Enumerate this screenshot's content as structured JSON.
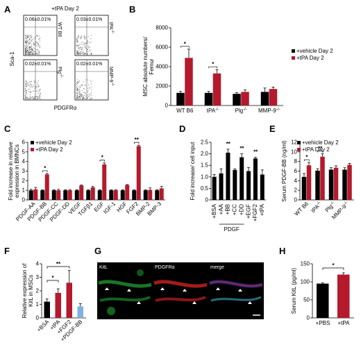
{
  "panel_labels": [
    "A",
    "B",
    "C",
    "D",
    "E",
    "F",
    "G",
    "H"
  ],
  "panelA": {
    "title": "+tPA Day 2",
    "ylabel": "Sca-1",
    "xlabel": "PDGFRα",
    "plots": [
      {
        "genotype": "WT B6",
        "value": "0.06±0.01%"
      },
      {
        "genotype": "tPA-/-",
        "value": "0.03±0.01%"
      },
      {
        "genotype": "Plg-/-",
        "value": "0.02±0.01%"
      },
      {
        "genotype": "MMP-9-/-",
        "value": "0.02±0.01%"
      }
    ]
  },
  "colors": {
    "vehicle": "#000000",
    "treated": "#b5192c",
    "pdgfbb": "#7fb0e0",
    "error": "#000000"
  },
  "chart_data": [
    {
      "panel": "B",
      "type": "bar",
      "ylabel": "MSC absolute numbers/ Femur",
      "categories": [
        "WT B6",
        "tPA-/-",
        "Plg-/-",
        "MMP-9-/-"
      ],
      "ylim": [
        0,
        8000
      ],
      "yticks": [
        "0",
        "2000",
        "4000",
        "6000",
        "8000"
      ],
      "series": [
        {
          "name": "+vehicle Day 2",
          "values": [
            1300,
            1300,
            1200,
            1400
          ],
          "errors": [
            150,
            150,
            120,
            400
          ]
        },
        {
          "name": "+tPA Day 2",
          "values": [
            4900,
            3300,
            1400,
            1700
          ],
          "errors": [
            900,
            400,
            200,
            200
          ]
        }
      ],
      "significance": [
        "*",
        "*",
        "",
        ""
      ]
    },
    {
      "panel": "C",
      "type": "bar",
      "ylabel": "Fold increase in relative expression in BMNCs",
      "categories": [
        "PDGF-AA",
        "PDGF-BB",
        "PDGF-CC",
        "PDGF-DD",
        "VEGF",
        "TGFβ1",
        "EGF",
        "IGF-1",
        "HGF",
        "FGF2",
        "BMP-2",
        "BMP-3"
      ],
      "ylim": [
        0,
        6
      ],
      "yticks": [
        "0",
        "1",
        "2",
        "3",
        "4",
        "5",
        "6"
      ],
      "series": [
        {
          "name": "+vehicle Day 2",
          "values": [
            1,
            1,
            1,
            1,
            1,
            1,
            1,
            1,
            1,
            1,
            1,
            1
          ],
          "errors": [
            0.1,
            0.05,
            0.05,
            0.05,
            0.05,
            0.05,
            0.05,
            0.05,
            0.05,
            0.05,
            0.05,
            0.05
          ]
        },
        {
          "name": "+tPA Day 2",
          "values": [
            1.1,
            2.65,
            1.0,
            1.0,
            1.5,
            1.3,
            3.7,
            1.0,
            1.55,
            5.6,
            1.05,
            1.2
          ],
          "errors": [
            0.2,
            0.1,
            0.1,
            0.05,
            0.05,
            0.1,
            0.15,
            0.05,
            0.05,
            0.1,
            0.2,
            0.2
          ]
        }
      ],
      "significance": [
        "",
        "*",
        "",
        "",
        "",
        "",
        "*",
        "",
        "",
        "**",
        "",
        ""
      ]
    },
    {
      "panel": "D",
      "type": "bar",
      "ylabel": "Fold increase/ cell input",
      "categories": [
        "+BSA",
        "+AA",
        "+BB",
        "+CC",
        "+DD",
        "+EGF",
        "+FGF2",
        "+tPA"
      ],
      "group_label": "PDGF",
      "ylim": [
        0,
        2.5
      ],
      "yticks": [
        "0",
        "0.5",
        "1.0",
        "1.5",
        "2.0",
        "2.5"
      ],
      "series": [
        {
          "name": "",
          "values": [
            1.0,
            1.15,
            2.05,
            1.3,
            1.85,
            1.25,
            1.8,
            1.1
          ],
          "errors": [
            0.1,
            0.2,
            0.15,
            0.05,
            0.15,
            0.15,
            0.05,
            0.2
          ]
        }
      ],
      "significance": [
        "",
        "",
        "**",
        "",
        "**",
        "",
        "**",
        ""
      ]
    },
    {
      "panel": "E",
      "type": "bar",
      "ylabel": "Serum PDGF-BB (ng/ml)",
      "categories": [
        "WT B6",
        "tPA-/-",
        "Plg-/-",
        "MMP-9-/-"
      ],
      "ylim": [
        0,
        12
      ],
      "yticks": [
        "0",
        "2",
        "4",
        "6",
        "8",
        "10",
        "12"
      ],
      "series": [
        {
          "name": "+vehicle Day 2",
          "values": [
            4.8,
            6.1,
            6.3,
            6.3
          ],
          "errors": [
            0.7,
            0.4,
            0.4,
            0.4
          ]
        },
        {
          "name": "+tPA Day 2",
          "values": [
            7.2,
            9.0,
            6.7,
            7.3
          ],
          "errors": [
            0.6,
            0.6,
            0.4,
            0.3
          ]
        }
      ],
      "significance": [
        "*",
        "**",
        "",
        ""
      ]
    },
    {
      "panel": "F",
      "type": "bar",
      "ylabel": "Relative expression of KitL in MSCs",
      "categories": [
        "+BSA",
        "+tPA",
        "+FGF2",
        "+PDGF-BB"
      ],
      "ylim": [
        0,
        4
      ],
      "yticks": [
        "0",
        "1",
        "2",
        "3",
        "4"
      ],
      "series": [
        {
          "name": "",
          "values": [
            1.2,
            1.85,
            2.6,
            0.85
          ],
          "errors": [
            0.2,
            0.3,
            0.9,
            0.2
          ]
        }
      ],
      "brackets": [
        {
          "from": 0,
          "to": 1,
          "label": "*"
        },
        {
          "from": 0,
          "to": 2,
          "label": "**"
        }
      ]
    },
    {
      "panel": "H",
      "type": "bar",
      "ylabel": "Serum KitL (pg/ml)",
      "categories": [
        "+PBS",
        "+tPA"
      ],
      "ylim": [
        0,
        150
      ],
      "yticks": [
        "0",
        "50",
        "100",
        "150"
      ],
      "series": [
        {
          "name": "",
          "values": [
            95,
            120
          ],
          "errors": [
            2,
            5
          ]
        }
      ],
      "brackets": [
        {
          "from": 0,
          "to": 1,
          "label": "*"
        }
      ]
    }
  ],
  "panelG": {
    "images": [
      {
        "label": "KitL",
        "color": "#1e8a2a"
      },
      {
        "label": "PDGFRα",
        "color": "#c0201e"
      },
      {
        "label": "merge",
        "color": "#2030a0"
      }
    ]
  }
}
